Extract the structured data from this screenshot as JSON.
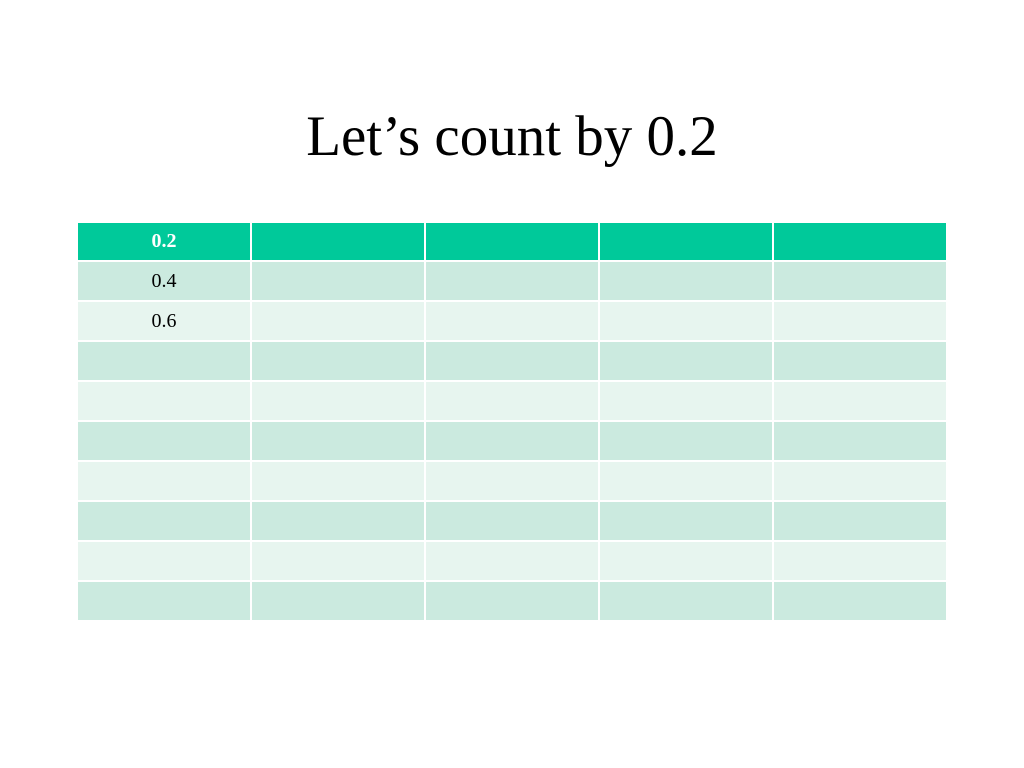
{
  "title": "Let’s count by 0.2",
  "table": {
    "header": [
      "0.2"
    ],
    "rows": [
      [
        "0.4"
      ],
      [
        "0.6"
      ]
    ]
  }
}
